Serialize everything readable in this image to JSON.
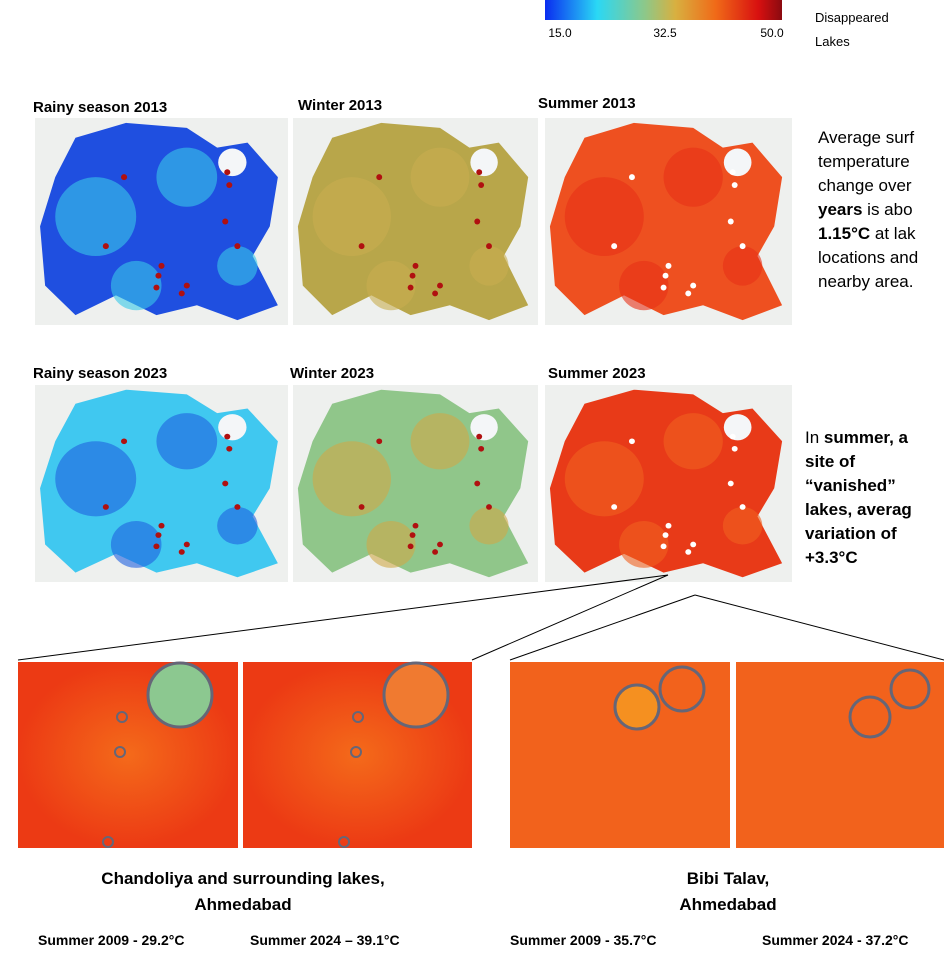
{
  "legend": {
    "ticks": [
      "15.0",
      "32.5",
      "50.0"
    ],
    "lake_label": [
      "Disappeared",
      "Lakes"
    ]
  },
  "maps": [
    {
      "title": "Rainy season 2013"
    },
    {
      "title": "Winter 2013"
    },
    {
      "title": "Summer 2013"
    },
    {
      "title": "Rainy season 2023"
    },
    {
      "title": "Winter 2023"
    },
    {
      "title": "Summer 2023"
    }
  ],
  "notes": [
    {
      "lines": [
        [
          {
            "text": "Average surf"
          }
        ],
        [
          {
            "text": "temperature"
          }
        ],
        [
          {
            "text": "change over"
          }
        ],
        [
          {
            "text": "years",
            "b": true
          },
          {
            "text": " is abo"
          }
        ],
        [
          {
            "text": "1.15°C",
            "b": true
          },
          {
            "text": " at lak"
          }
        ],
        [
          {
            "text": "locations and"
          }
        ],
        [
          {
            "text": "nearby area."
          }
        ]
      ]
    },
    {
      "lines": [
        [
          {
            "text": "In "
          },
          {
            "text": "summer, a",
            "b": true
          }
        ],
        [
          {
            "text": "site of",
            "b": true
          }
        ],
        [
          {
            "text": "“vanished”",
            "b": true
          }
        ],
        [
          {
            "text": "lakes, averag",
            "b": true
          }
        ],
        [
          {
            "text": "variation of",
            "b": true
          }
        ],
        [
          {
            "text": "+3.3°C",
            "b": true
          }
        ]
      ]
    }
  ],
  "zooms": [
    {
      "caption": [
        "Chandoliya and surrounding lakes,",
        "Ahmedabad"
      ],
      "labels": [
        "Summer 2009 - 29.2°C",
        "Summer 2024 – 39.1°C"
      ]
    },
    {
      "caption": [
        "Bibi Talav,",
        "Ahmedabad"
      ],
      "labels": [
        "Summer 2009 - 35.7°C",
        "Summer 2024 - 37.2°C"
      ]
    }
  ]
}
